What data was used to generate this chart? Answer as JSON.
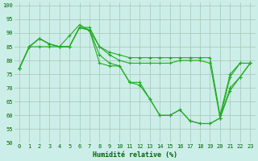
{
  "xlabel": "Humidité relative (%)",
  "background_color": "#cceee8",
  "grid_color": "#aaccbb",
  "line_color": "#22aa22",
  "xlim": [
    -0.5,
    23.5
  ],
  "ylim": [
    50,
    101
  ],
  "xticks": [
    0,
    1,
    2,
    3,
    4,
    5,
    6,
    7,
    8,
    9,
    10,
    11,
    12,
    13,
    14,
    15,
    16,
    17,
    18,
    19,
    20,
    21,
    22,
    23
  ],
  "yticks": [
    50,
    55,
    60,
    65,
    70,
    75,
    80,
    85,
    90,
    95,
    100
  ],
  "series": [
    [
      77,
      85,
      85,
      85,
      85,
      85,
      92,
      92,
      85,
      83,
      82,
      81,
      81,
      81,
      81,
      81,
      81,
      81,
      81,
      81,
      60,
      75,
      79,
      79
    ],
    [
      77,
      85,
      88,
      86,
      85,
      89,
      93,
      91,
      85,
      82,
      80,
      79,
      79,
      79,
      79,
      79,
      80,
      80,
      80,
      79,
      59,
      74,
      79,
      79
    ],
    [
      77,
      85,
      88,
      86,
      85,
      85,
      92,
      91,
      82,
      79,
      78,
      72,
      72,
      66,
      60,
      60,
      62,
      58,
      57,
      57,
      59,
      69,
      74,
      79
    ],
    [
      77,
      85,
      88,
      86,
      85,
      85,
      92,
      91,
      79,
      78,
      78,
      72,
      71,
      66,
      60,
      60,
      62,
      58,
      57,
      57,
      59,
      70,
      74,
      79
    ]
  ]
}
